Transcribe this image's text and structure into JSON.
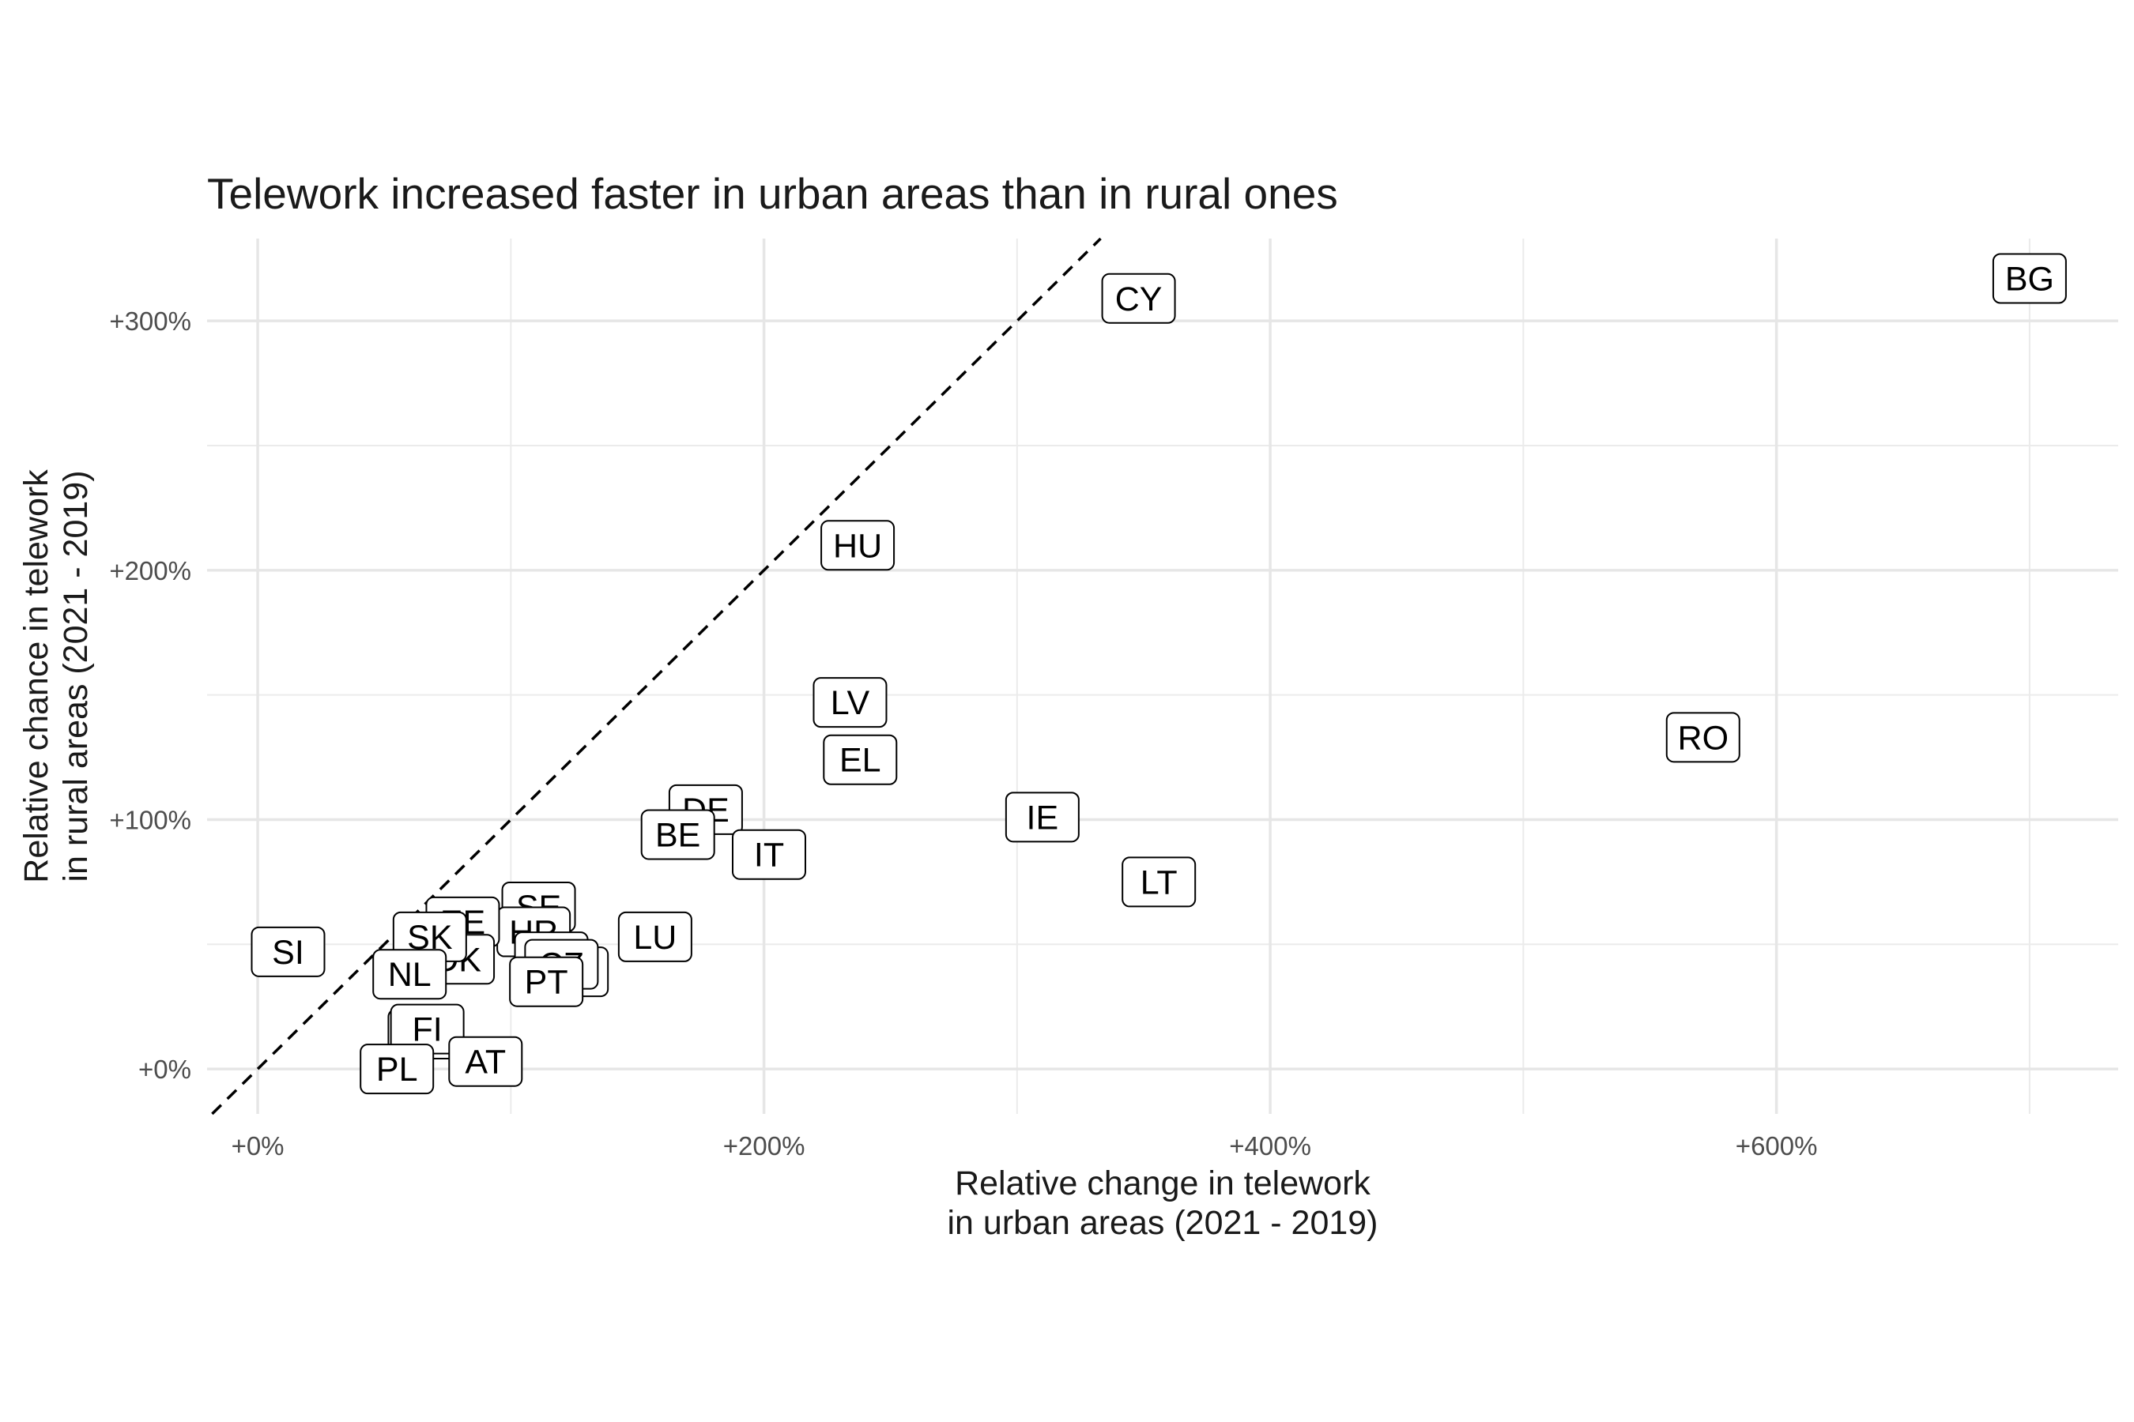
{
  "chart_data": {
    "type": "scatter",
    "title": "Telework increased faster in urban areas than in rural ones",
    "xlabel": [
      "Relative change in telework",
      "in urban areas (2021 - 2019)"
    ],
    "ylabel": [
      "Relative chance in telework",
      "in rural areas (2021 - 2019)"
    ],
    "xlim": [
      -20,
      735
    ],
    "ylim": [
      -18,
      333
    ],
    "x_ticks": [
      0,
      200,
      400,
      600
    ],
    "x_tick_labels": [
      "+0%",
      "+200%",
      "+400%",
      "+600%"
    ],
    "y_ticks": [
      0,
      100,
      200,
      300
    ],
    "y_tick_labels": [
      "+0%",
      "+100%",
      "+200%",
      "+300%"
    ],
    "grid": true,
    "reference_line": "y = x (dashed)",
    "points": [
      {
        "label": "BG",
        "x": 700,
        "y": 317
      },
      {
        "label": "CY",
        "x": 348,
        "y": 309
      },
      {
        "label": "HU",
        "x": 237,
        "y": 210
      },
      {
        "label": "LV",
        "x": 234,
        "y": 147
      },
      {
        "label": "EL",
        "x": 238,
        "y": 124
      },
      {
        "label": "RO",
        "x": 571,
        "y": 133
      },
      {
        "label": "IE",
        "x": 310,
        "y": 101
      },
      {
        "label": "LT",
        "x": 356,
        "y": 75
      },
      {
        "label": "DE",
        "x": 177,
        "y": 104
      },
      {
        "label": "BE",
        "x": 166,
        "y": 94
      },
      {
        "label": "IT",
        "x": 202,
        "y": 86
      },
      {
        "label": "LU",
        "x": 157,
        "y": 53
      },
      {
        "label": "SE",
        "x": 111,
        "y": 65
      },
      {
        "label": "HR",
        "x": 109,
        "y": 55
      },
      {
        "label": "FR",
        "x": 116,
        "y": 45
      },
      {
        "label": "ES",
        "x": 124,
        "y": 39
      },
      {
        "label": "CZ",
        "x": 120,
        "y": 42
      },
      {
        "label": "PT",
        "x": 114,
        "y": 35
      },
      {
        "label": "EE",
        "x": 81,
        "y": 59
      },
      {
        "label": "DK",
        "x": 79,
        "y": 44
      },
      {
        "label": "SK",
        "x": 68,
        "y": 53
      },
      {
        "label": "NL",
        "x": 60,
        "y": 38
      },
      {
        "label": "SI",
        "x": 12,
        "y": 47
      },
      {
        "label": "MT",
        "x": 66,
        "y": 14
      },
      {
        "label": "FI",
        "x": 67,
        "y": 16
      },
      {
        "label": "AT",
        "x": 90,
        "y": 3
      },
      {
        "label": "PL",
        "x": 55,
        "y": 0
      }
    ]
  }
}
